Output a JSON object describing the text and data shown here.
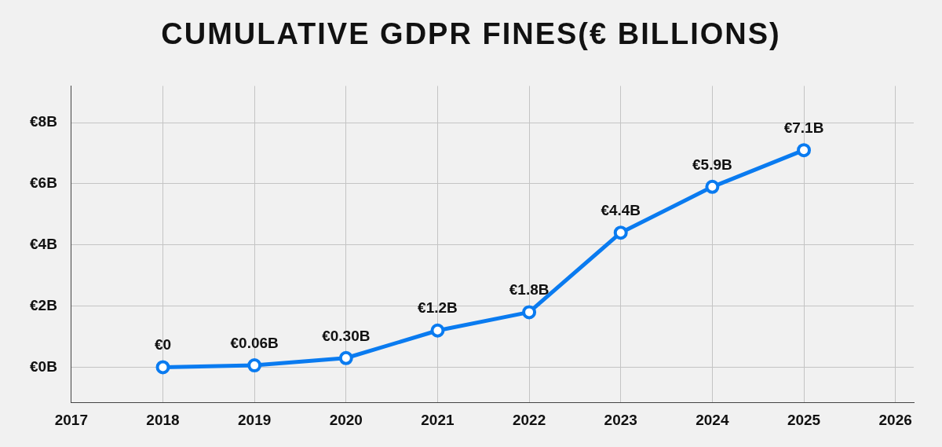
{
  "chart_data": {
    "type": "line",
    "title": "CUMULATIVE GDPR FINES(€ BILLIONS)",
    "x": [
      2018,
      2019,
      2020,
      2021,
      2022,
      2023,
      2024,
      2025
    ],
    "series": [
      {
        "color": "#0a7bf0",
        "values": [
          0,
          0.06,
          0.3,
          1.2,
          1.8,
          4.4,
          5.9,
          7.1
        ],
        "value_labels": [
          "€0",
          "€0.06B",
          "€0.30B",
          "€1.2B",
          "€1.8B",
          "€4.4B",
          "€5.9B",
          "€7.1B"
        ]
      }
    ],
    "xlim": [
      2017,
      2026.2
    ],
    "xticks": [
      2017,
      2018,
      2019,
      2020,
      2021,
      2022,
      2023,
      2024,
      2025,
      2026
    ],
    "ylim": [
      -1.15,
      9.2
    ],
    "yticks": [
      {
        "value": 0,
        "label": "€0B"
      },
      {
        "value": 2,
        "label": "€2B"
      },
      {
        "value": 4,
        "label": "€4B"
      },
      {
        "value": 6,
        "label": "€6B"
      },
      {
        "value": 8,
        "label": "€8B"
      }
    ],
    "grid": true,
    "marker": "circle",
    "line_style": "solid",
    "legend": false
  }
}
